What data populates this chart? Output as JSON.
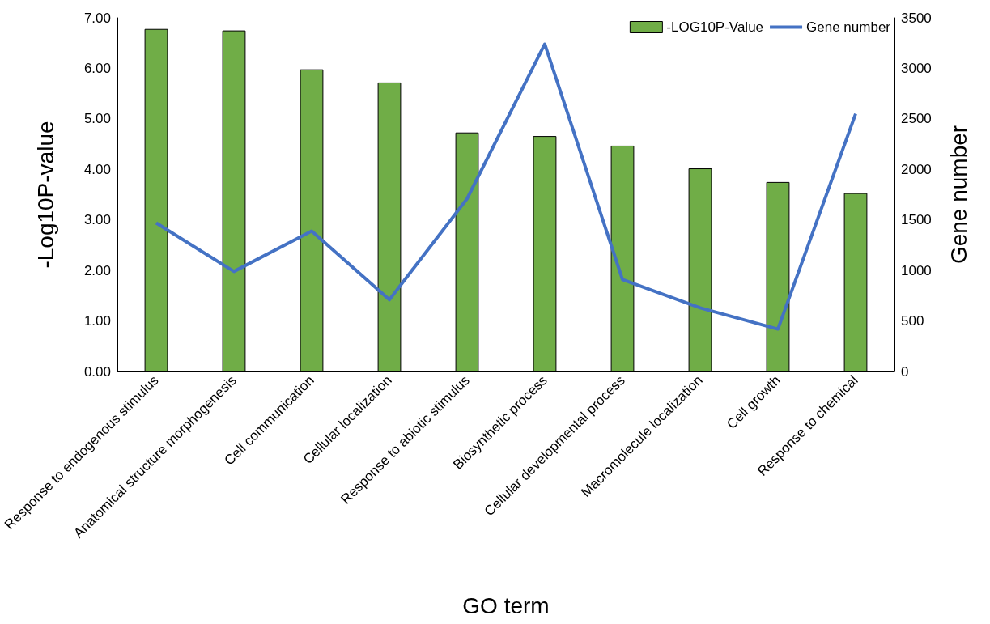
{
  "chart_data": {
    "type": "bar",
    "xlabel": "GO term",
    "ylabel": "-Log10P-value",
    "y2label": "Gene number",
    "categories": [
      "Response to endogenous stimulus",
      "Anatomical structure morphogenesis",
      "Cell communication",
      "Cellular localization",
      "Response to abiotic stimulus",
      "Biosynthetic process",
      "Cellular developmental process",
      "Macromolecule localization",
      "Cell growth",
      "Response to chemical"
    ],
    "series": [
      {
        "name": "-LOG10P-Value",
        "color": "#70ad47",
        "values": [
          6.78,
          6.75,
          5.98,
          5.72,
          4.73,
          4.66,
          4.47,
          4.02,
          3.75,
          3.53
        ]
      },
      {
        "name": "Gene number",
        "type": "line",
        "axis": "y2",
        "color": "#4472c4",
        "marker": "none",
        "values": [
          1470,
          990,
          1390,
          710,
          1710,
          3240,
          910,
          630,
          420,
          2550
        ]
      }
    ],
    "ylim": [
      0,
      7
    ],
    "yticks": [
      {
        "value": 0,
        "label": "0.00"
      },
      {
        "value": 1,
        "label": "1.00"
      },
      {
        "value": 2,
        "label": "2.00"
      },
      {
        "value": 3,
        "label": "3.00"
      },
      {
        "value": 4,
        "label": "4.00"
      },
      {
        "value": 5,
        "label": "5.00"
      },
      {
        "value": 6,
        "label": "6.00"
      },
      {
        "value": 7,
        "label": "7.00"
      }
    ],
    "y2lim": [
      0,
      3500
    ],
    "y2ticks": [
      0,
      500,
      1000,
      1500,
      2000,
      2500,
      3000,
      3500
    ],
    "grid": false,
    "legend": "top right"
  }
}
